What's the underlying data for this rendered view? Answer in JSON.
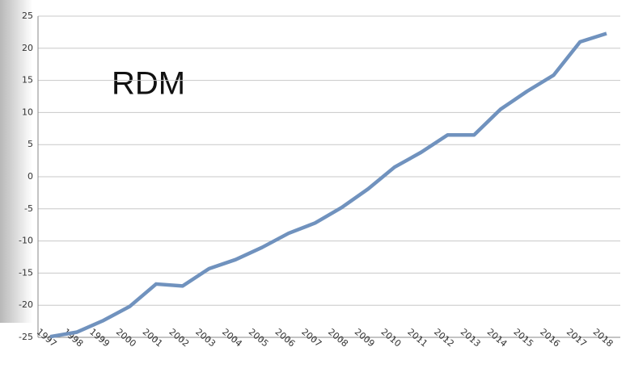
{
  "chart_data": {
    "type": "line",
    "annotation": "RDM",
    "categories": [
      "1997",
      "1998",
      "1999",
      "2000",
      "2001",
      "2002",
      "2003",
      "2004",
      "2005",
      "2006",
      "2007",
      "2008",
      "2009",
      "2010",
      "2011",
      "2012",
      "2013",
      "2014",
      "2015",
      "2016",
      "2017",
      "2018"
    ],
    "series": [
      {
        "color": "#7092be",
        "values": [
          -24.9,
          -24.2,
          -22.4,
          -20.2,
          -16.7,
          -17.0,
          -14.3,
          -12.9,
          -11.0,
          -8.8,
          -7.2,
          -4.8,
          -1.9,
          1.5,
          3.8,
          6.5,
          6.5,
          10.5,
          13.3,
          15.8,
          21.0,
          22.3
        ]
      }
    ],
    "ylim": [
      -25,
      25
    ],
    "yticks": [
      -25,
      -20,
      -15,
      -10,
      -5,
      0,
      5,
      10,
      15,
      20,
      25
    ],
    "grid": true
  }
}
